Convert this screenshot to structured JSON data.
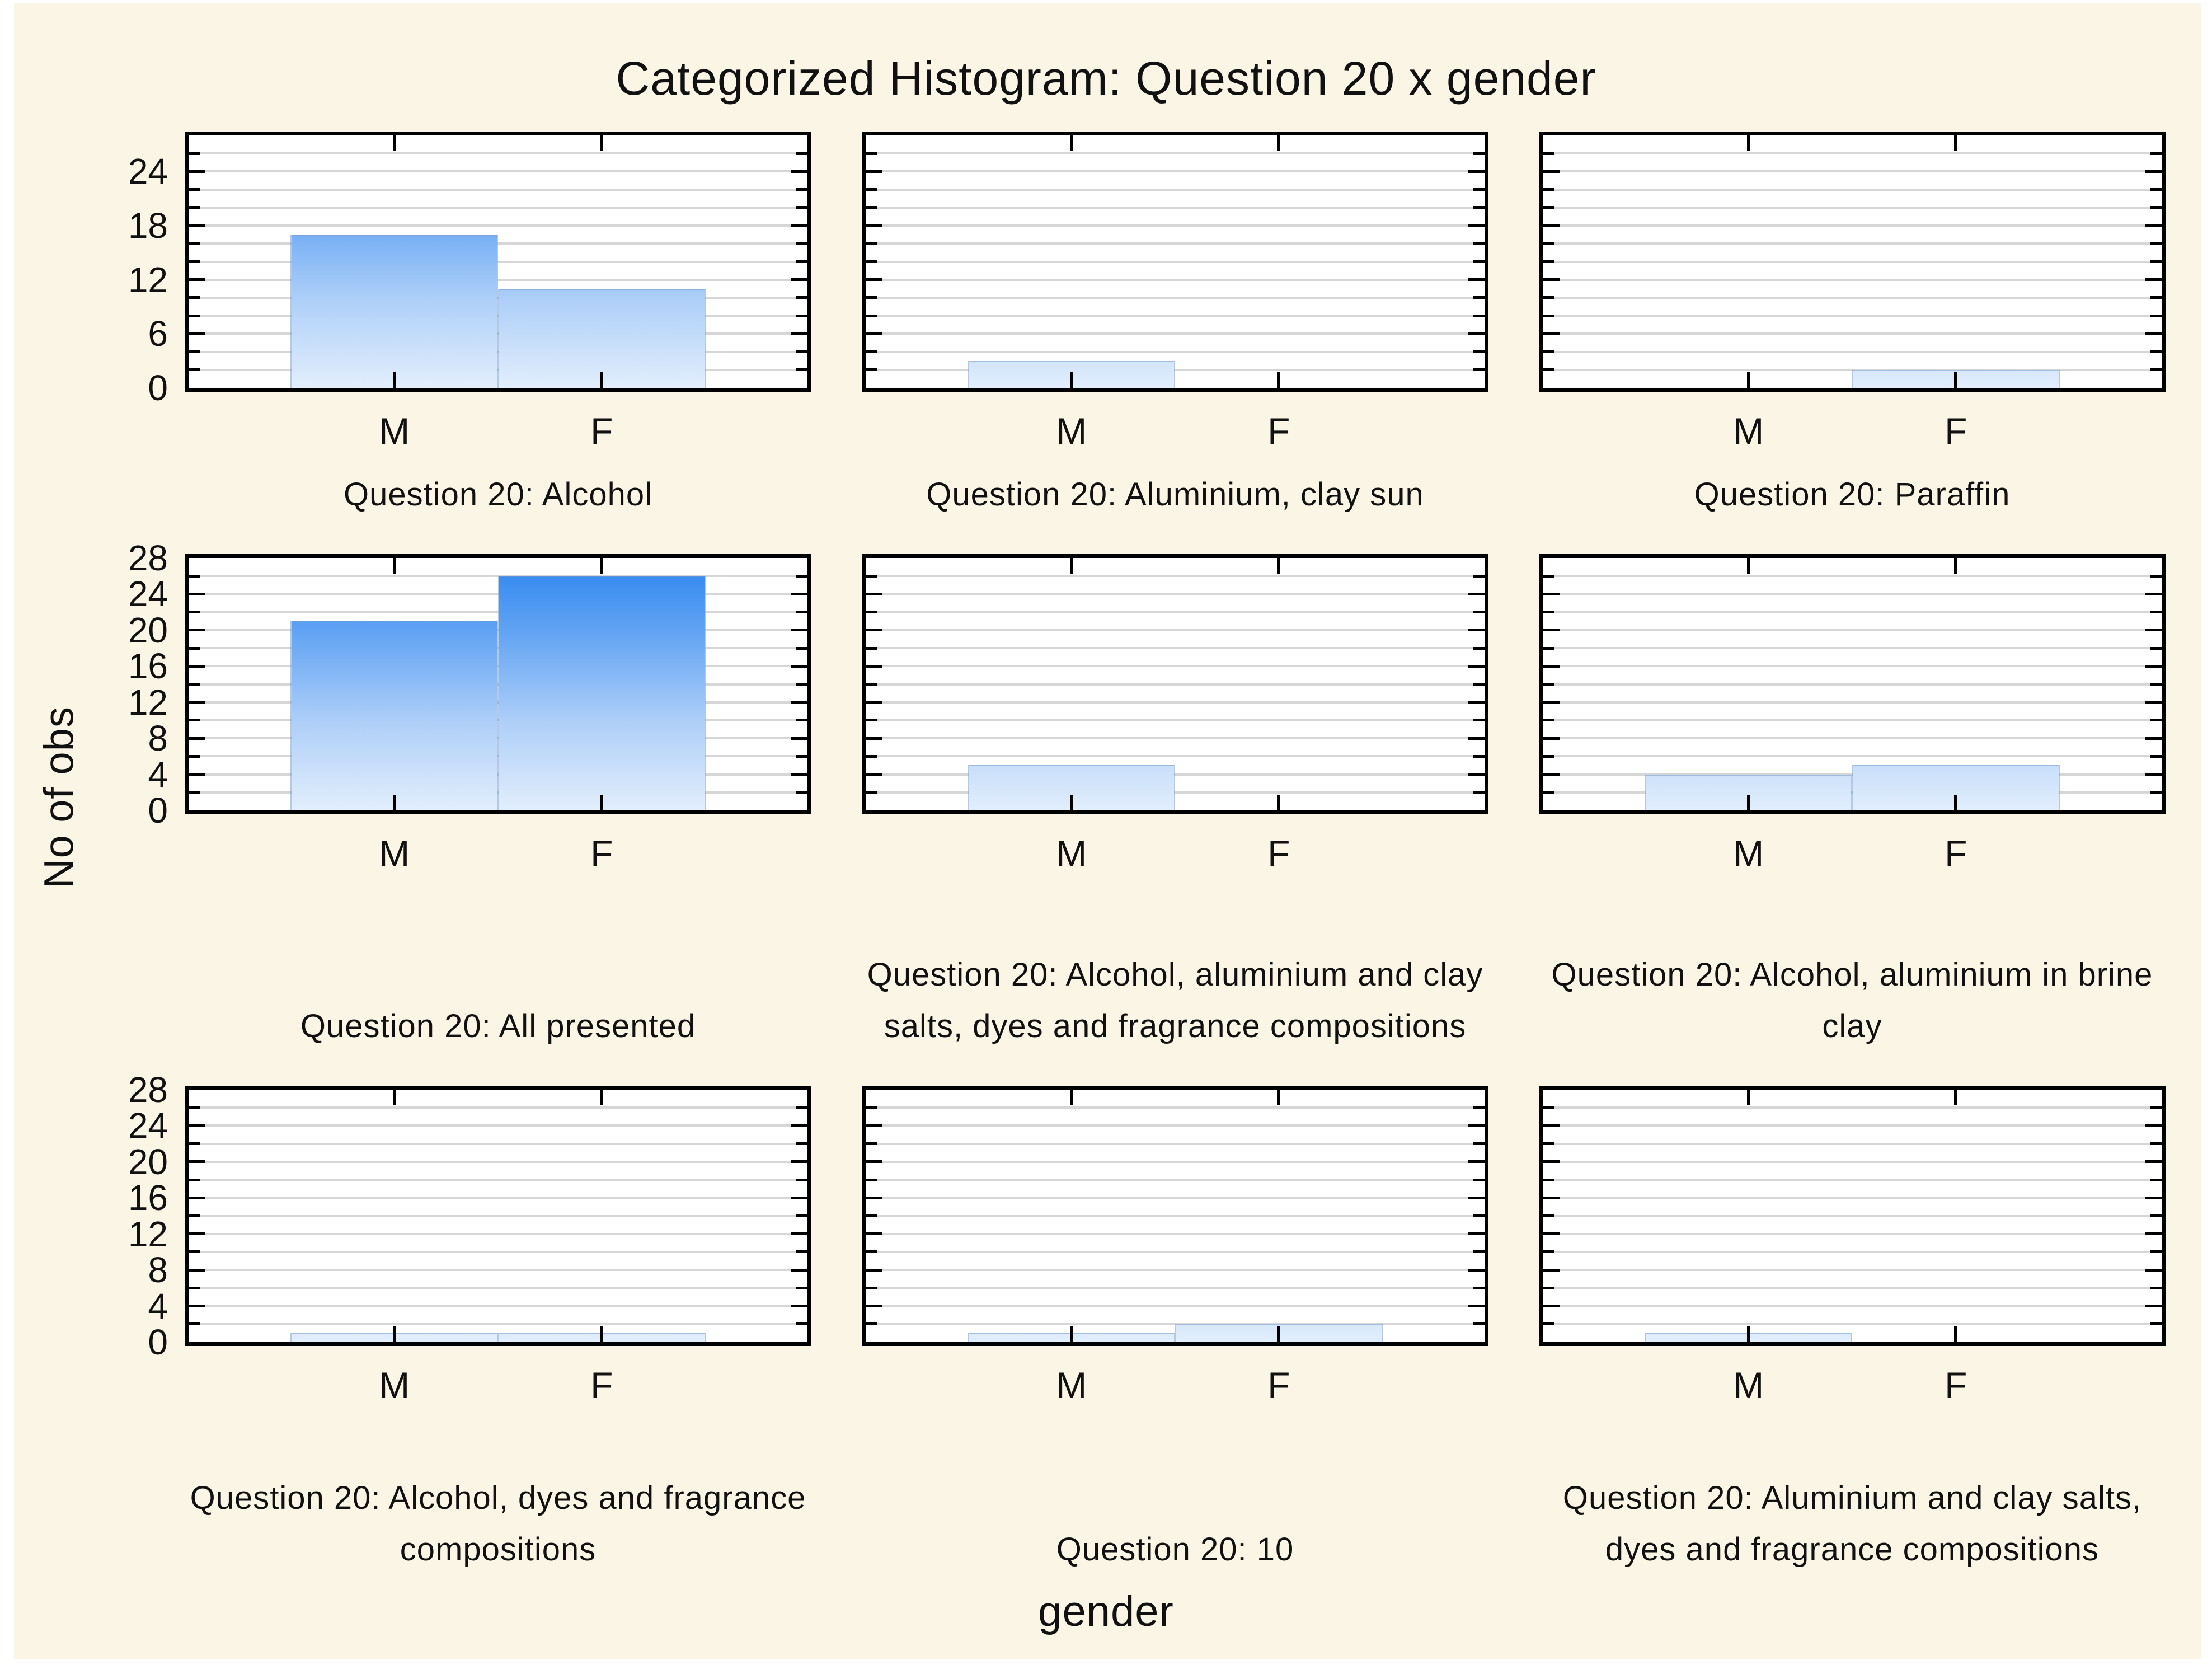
{
  "title": "Categorized Histogram: Question 20 x gender",
  "x_axis_label": "gender",
  "y_axis_label": "No of obs",
  "colors": {
    "canvas_background": "#FBF5E5",
    "plot_background": "#FFFFFF",
    "plot_border": "#000000",
    "gridline": "#D6D6D6",
    "bar_gradient_top": "#2B85EF",
    "bar_gradient_bottom": "#E2EEFC",
    "bar_border": "#7B9BCD",
    "text": "#111111"
  },
  "chart_data": {
    "type": "bar",
    "layout": "3x3 categorized histogram grid",
    "categories": [
      "M",
      "F"
    ],
    "ylim": [
      0,
      28
    ],
    "grid_step": 2,
    "legend_position": "none",
    "grid_on": true,
    "panels": [
      {
        "caption_lines": [
          "Question 20: Alcohol"
        ],
        "values": [
          17,
          11
        ],
        "y_tick_labels": [
          0,
          6,
          12,
          18,
          24
        ],
        "label_step": 6
      },
      {
        "caption_lines": [
          "Question 20: Aluminium, clay sun"
        ],
        "values": [
          3,
          0
        ],
        "y_tick_labels": [],
        "label_step": 6
      },
      {
        "caption_lines": [
          "Question 20: Paraffin"
        ],
        "values": [
          0,
          2
        ],
        "y_tick_labels": [],
        "label_step": 6
      },
      {
        "caption_lines": [
          "Question 20: All presented"
        ],
        "values": [
          21,
          26
        ],
        "y_tick_labels": [
          0,
          4,
          8,
          12,
          16,
          20,
          24,
          28
        ],
        "label_step": 4
      },
      {
        "caption_lines": [
          "Question 20: Alcohol, aluminium and clay",
          "salts, dyes and fragrance compositions"
        ],
        "values": [
          5,
          0
        ],
        "y_tick_labels": [],
        "label_step": 4
      },
      {
        "caption_lines": [
          "Question 20: Alcohol, aluminium in brine",
          "clay"
        ],
        "values": [
          4,
          5
        ],
        "y_tick_labels": [],
        "label_step": 4
      },
      {
        "caption_lines": [
          "Question 20: Alcohol, dyes and fragrance",
          "compositions"
        ],
        "values": [
          1,
          1
        ],
        "y_tick_labels": [
          0,
          4,
          8,
          12,
          16,
          20,
          24,
          28
        ],
        "label_step": 4
      },
      {
        "caption_lines": [
          "Question 20: 10"
        ],
        "values": [
          1,
          2
        ],
        "y_tick_labels": [],
        "label_step": 4
      },
      {
        "caption_lines": [
          "Question 20: Aluminium and clay salts,",
          "dyes and fragrance compositions"
        ],
        "values": [
          1,
          0
        ],
        "y_tick_labels": [],
        "label_step": 4
      }
    ]
  }
}
